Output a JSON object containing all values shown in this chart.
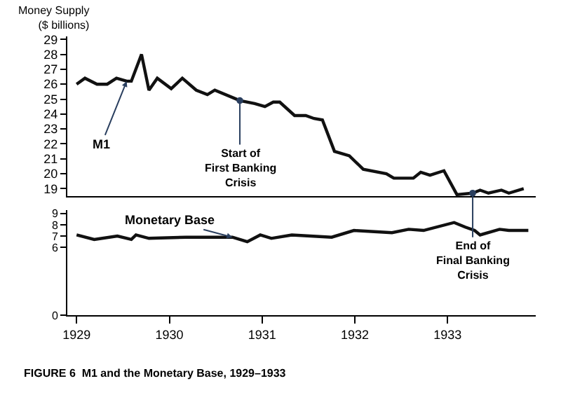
{
  "chart_data": [
    {
      "type": "line",
      "ylabel": "Money Supply\n($ billions)",
      "xlim": [
        1928.9,
        1933.95
      ],
      "xticks": [
        1929,
        1930,
        1931,
        1932,
        1933
      ],
      "ylim": [
        18.5,
        29.2
      ],
      "yticks": [
        19,
        20,
        21,
        22,
        23,
        24,
        25,
        26,
        27,
        28,
        29
      ],
      "tick_labels": "y",
      "marker": "none",
      "line_style": "solid",
      "x": [
        1929.0,
        1929.09,
        1929.22,
        1929.33,
        1929.43,
        1929.54,
        1929.59,
        1929.7,
        1929.78,
        1929.87,
        1930.02,
        1930.14,
        1930.29,
        1930.41,
        1930.49,
        1930.76,
        1930.92,
        1931.03,
        1931.12,
        1931.19,
        1931.35,
        1931.47,
        1931.56,
        1931.65,
        1931.78,
        1931.94,
        1932.09,
        1932.34,
        1932.42,
        1932.63,
        1932.71,
        1932.81,
        1932.96,
        1933.1,
        1933.27,
        1933.35,
        1933.44,
        1933.58,
        1933.66,
        1933.82
      ],
      "series": [
        {
          "name": "M1",
          "color": "#111111",
          "values": [
            26.0,
            26.4,
            26.0,
            26.0,
            26.4,
            26.2,
            26.2,
            28.0,
            25.6,
            26.4,
            25.7,
            26.4,
            25.6,
            25.3,
            25.6,
            24.9,
            24.7,
            24.5,
            24.8,
            24.8,
            23.9,
            23.9,
            23.7,
            23.6,
            21.5,
            21.2,
            20.3,
            20.0,
            19.7,
            19.7,
            20.1,
            19.9,
            20.2,
            18.6,
            18.7,
            18.9,
            18.7,
            18.9,
            18.7,
            19.0
          ]
        }
      ],
      "annotations": [
        {
          "text": "Start of\nFirst Banking\nCrisis",
          "x": 1930.76,
          "y": 24.9
        },
        {
          "text": "End of\nFinal Banking\nCrisis",
          "x": 1933.27,
          "y": 18.7
        }
      ]
    },
    {
      "type": "line",
      "xlim": [
        1928.9,
        1933.95
      ],
      "xticks": [
        1929,
        1930,
        1931,
        1932,
        1933
      ],
      "ylim": [
        0,
        9.3
      ],
      "yticks": [
        0,
        6,
        7,
        8,
        9
      ],
      "marker": "none",
      "line_style": "solid",
      "x": [
        1929.0,
        1929.19,
        1929.44,
        1929.59,
        1929.64,
        1929.78,
        1930.18,
        1930.68,
        1930.84,
        1930.98,
        1931.1,
        1931.32,
        1931.75,
        1931.99,
        1932.4,
        1932.58,
        1932.74,
        1933.07,
        1933.19,
        1933.29,
        1933.35,
        1933.56,
        1933.66,
        1933.87
      ],
      "series": [
        {
          "name": "Monetary Base",
          "color": "#111111",
          "values": [
            7.1,
            6.7,
            7.0,
            6.7,
            7.1,
            6.8,
            6.9,
            6.9,
            6.5,
            7.1,
            6.8,
            7.1,
            6.9,
            7.5,
            7.3,
            7.6,
            7.5,
            8.2,
            7.8,
            7.5,
            7.1,
            7.6,
            7.5,
            7.5
          ]
        }
      ],
      "annotations": [
        "FIGURE 6  M1 and the Monetary Base, 1929–1933"
      ]
    }
  ]
}
